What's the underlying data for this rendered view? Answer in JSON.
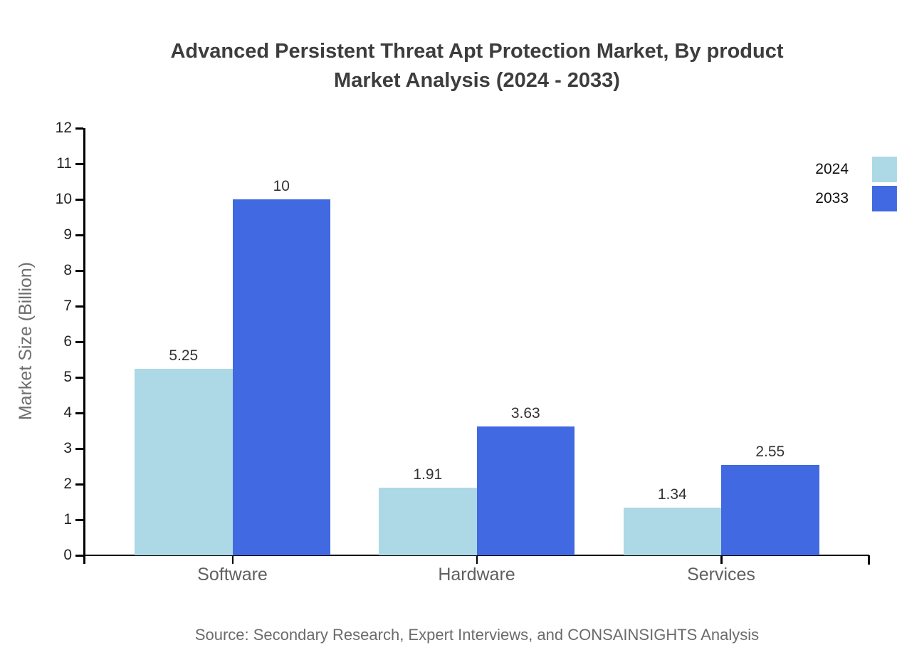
{
  "title": {
    "line1": "Advanced Persistent Threat Apt Protection Market, By product",
    "line2": "Market Analysis (2024 - 2033)"
  },
  "source_note": "Source: Secondary Research, Expert Interviews, and CONSAINSIGHTS Analysis",
  "chart_data": {
    "type": "bar",
    "categories": [
      "Software",
      "Hardware",
      "Services"
    ],
    "series": [
      {
        "name": "2024",
        "color": "#ADD8E6",
        "values": [
          5.25,
          1.91,
          1.34
        ],
        "labels": [
          "5.25",
          "1.91",
          "1.34"
        ]
      },
      {
        "name": "2033",
        "color": "#4169E1",
        "values": [
          10,
          3.63,
          2.55
        ],
        "labels": [
          "10",
          "3.63",
          "2.55"
        ]
      }
    ],
    "title": "Advanced Persistent Threat Apt Protection Market, By product Market Analysis (2024 - 2033)",
    "xlabel": "",
    "ylabel": "Market Size (Billion)",
    "ylim": [
      0,
      12
    ],
    "ytick_step": 1,
    "grid": false,
    "legend_position": "top-right-edge"
  }
}
